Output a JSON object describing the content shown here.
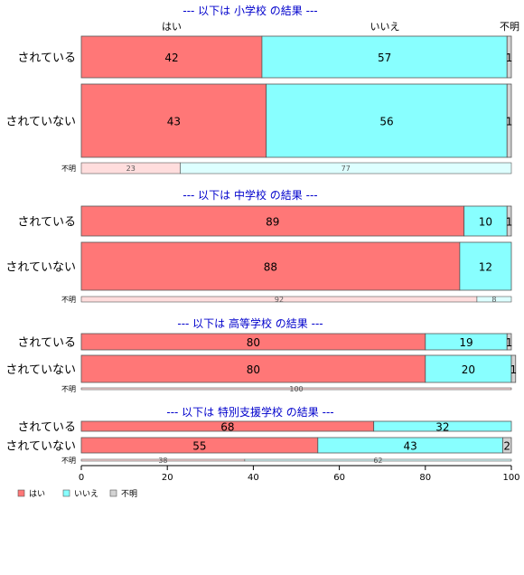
{
  "chart_data": {
    "type": "bar",
    "orientation": "horizontal",
    "stacked": true,
    "percent": true,
    "xlim": [
      0,
      100
    ],
    "xticks": [
      0,
      20,
      40,
      60,
      80,
      100
    ],
    "grid": false,
    "legend_position": "bottom-left",
    "series_names": [
      "はい",
      "いいえ",
      "不明"
    ],
    "colors": {
      "yes": "#ff7777",
      "no": "#88ffff",
      "unknown": "#d3d3d3",
      "yes_light": "#ffdddd",
      "no_light": "#ddffff",
      "unknown_light": "#eeeeee",
      "title": "#0000cc",
      "stroke": "#555555"
    },
    "top_labels": [
      "はい",
      "いいえ",
      "不明"
    ],
    "panels": [
      {
        "title": "--- 以下は 小学校 の結果 ---",
        "rows": [
          {
            "label": "されている",
            "values": [
              42,
              57,
              1
            ]
          },
          {
            "label": "されていない",
            "values": [
              43,
              56,
              1
            ]
          }
        ],
        "unknown_row": {
          "label": "不明",
          "values": [
            23,
            77
          ]
        }
      },
      {
        "title": "--- 以下は 中学校 の結果 ---",
        "rows": [
          {
            "label": "されている",
            "values": [
              89,
              10,
              1
            ]
          },
          {
            "label": "されていない",
            "values": [
              88,
              12,
              0
            ]
          }
        ],
        "unknown_row": {
          "label": "不明",
          "values": [
            92,
            8
          ]
        }
      },
      {
        "title": "--- 以下は 高等学校 の結果 ---",
        "rows": [
          {
            "label": "されている",
            "values": [
              80,
              19,
              1
            ]
          },
          {
            "label": "されていない",
            "values": [
              80,
              20,
              1
            ]
          }
        ],
        "unknown_row": {
          "label": "不明",
          "values": [
            100,
            0
          ]
        }
      },
      {
        "title": "--- 以下は 特別支援学校 の結果 ---",
        "rows": [
          {
            "label": "されている",
            "values": [
              68,
              32,
              0
            ]
          },
          {
            "label": "されていない",
            "values": [
              55,
              43,
              2
            ]
          }
        ],
        "unknown_row": {
          "label": "不明",
          "values": [
            38,
            62
          ]
        }
      }
    ]
  }
}
